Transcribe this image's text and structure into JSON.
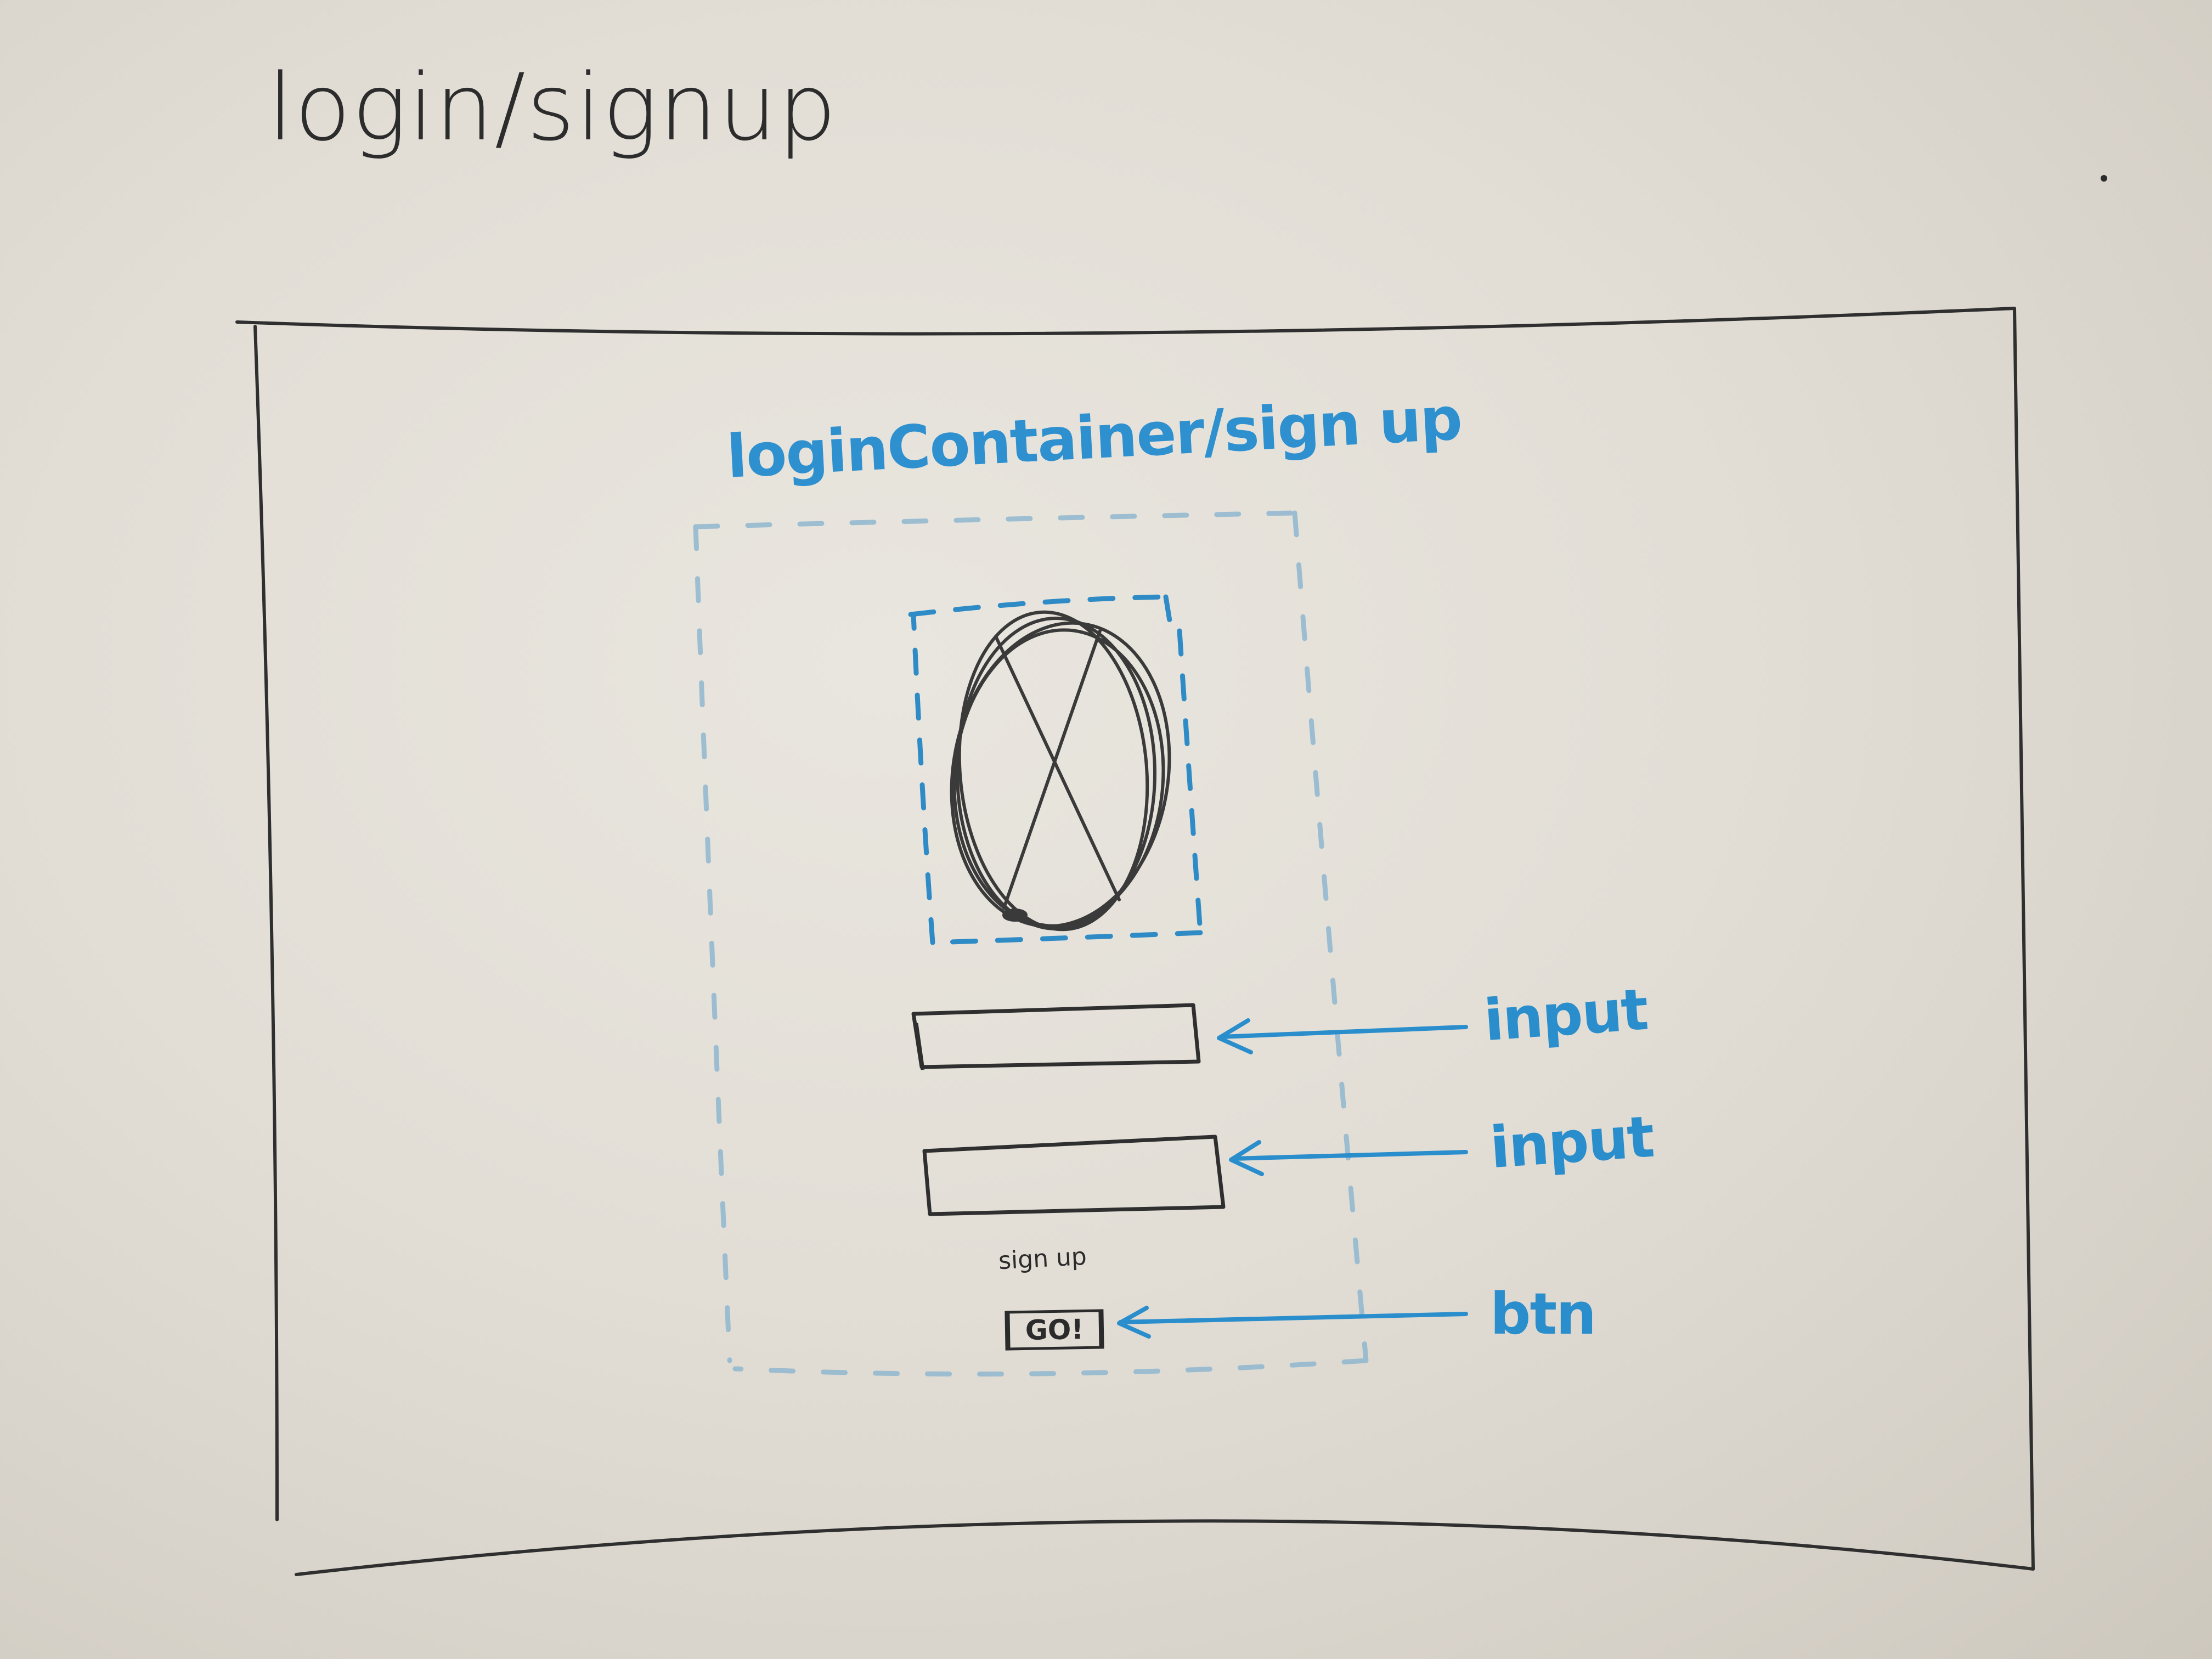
{
  "sketch": {
    "title": "login/signup",
    "container_label": "loginContainer/sign up",
    "signup_link": "sign up",
    "go_button": "GO!",
    "annotations": {
      "input_1": "input",
      "input_2": "input",
      "button": "btn"
    }
  },
  "colors": {
    "marker_black": "#2b2b2b",
    "marker_blue": "#2a8dcc",
    "board": "#e4e0d8"
  },
  "icons": {
    "logo_placeholder": "image-placeholder-icon"
  }
}
